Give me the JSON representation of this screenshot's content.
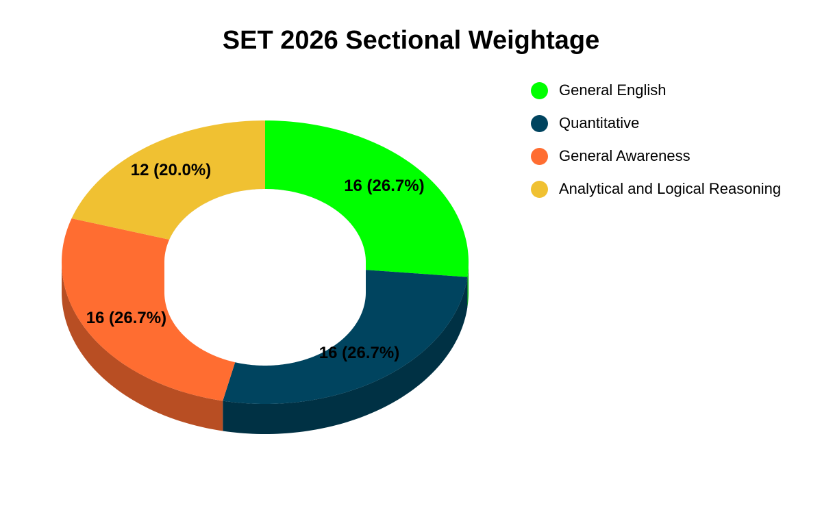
{
  "chart_data": {
    "type": "pie",
    "style": "3d-donut",
    "title": "SET 2026 Sectional Weightage",
    "legend_position": "top-right",
    "slices": [
      {
        "label": "General English",
        "value": 16,
        "percent": "26.7%",
        "color": "#00ff00",
        "display": "16 (26.7%)"
      },
      {
        "label": "Quantitative",
        "value": 16,
        "percent": "26.7%",
        "color": "#00445f",
        "display": "16 (26.7%)"
      },
      {
        "label": "General Awareness",
        "value": 16,
        "percent": "26.7%",
        "color": "#ff6d31",
        "display": "16 (26.7%)"
      },
      {
        "label": "Analytical and Logical Reasoning",
        "value": 12,
        "percent": "20.0%",
        "color": "#f0c132",
        "display": "12 (20.0%)"
      }
    ]
  }
}
